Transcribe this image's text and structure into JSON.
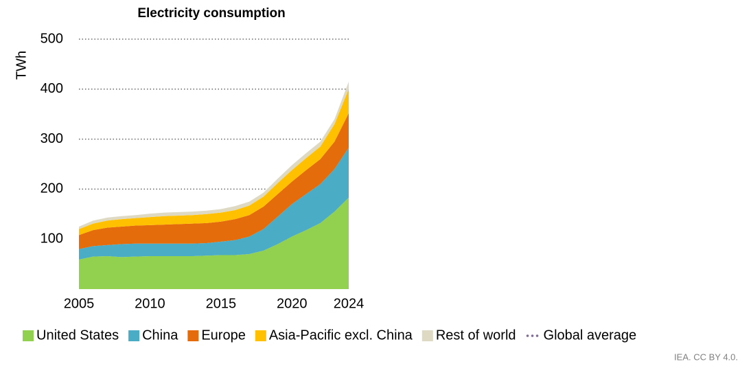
{
  "chart_data": {
    "type": "stacked_area",
    "title": "Electricity consumption",
    "y_label": "TWh",
    "source": "IEA. CC BY 4.0.",
    "x": [
      2005,
      2006,
      2007,
      2008,
      2009,
      2010,
      2011,
      2012,
      2013,
      2014,
      2015,
      2016,
      2017,
      2018,
      2019,
      2020,
      2021,
      2022,
      2023,
      2024
    ],
    "xlim": [
      2005,
      2024
    ],
    "xticks": [
      2005,
      2010,
      2015,
      2020,
      2024
    ],
    "ylim": [
      0,
      500
    ],
    "yticks": [
      100,
      200,
      300,
      400,
      500
    ],
    "grid": true,
    "series": [
      {
        "name": "United States",
        "color": "#92d050",
        "values": [
          59,
          65,
          66,
          64,
          65,
          66,
          66,
          66,
          66,
          67,
          68,
          68,
          70,
          77,
          90,
          105,
          118,
          132,
          155,
          183
        ]
      },
      {
        "name": "China",
        "color": "#4bacc6",
        "values": [
          21,
          21,
          22,
          26,
          26,
          25,
          25,
          25,
          25,
          25,
          27,
          30,
          35,
          43,
          55,
          65,
          72,
          78,
          85,
          100
        ]
      },
      {
        "name": "Europe",
        "color": "#e46c0a",
        "values": [
          28,
          32,
          35,
          35,
          36,
          37,
          38,
          39,
          40,
          40,
          40,
          42,
          43,
          45,
          45,
          45,
          48,
          50,
          55,
          69
        ]
      },
      {
        "name": "Asia-Pacific excl. China",
        "color": "#ffc000",
        "values": [
          12,
          13,
          14,
          15,
          15,
          16,
          17,
          17,
          17,
          18,
          18,
          18,
          19,
          20,
          22,
          23,
          24,
          25,
          35,
          48
        ]
      },
      {
        "name": "Rest of world",
        "color": "#ddd9c3",
        "values": [
          5,
          6,
          6,
          6,
          6,
          7,
          7,
          7,
          7,
          7,
          7,
          8,
          8,
          8,
          9,
          10,
          10,
          10,
          10,
          15
        ]
      }
    ],
    "reference_legend": {
      "name": "Global average",
      "color": "#7f6a93"
    }
  }
}
